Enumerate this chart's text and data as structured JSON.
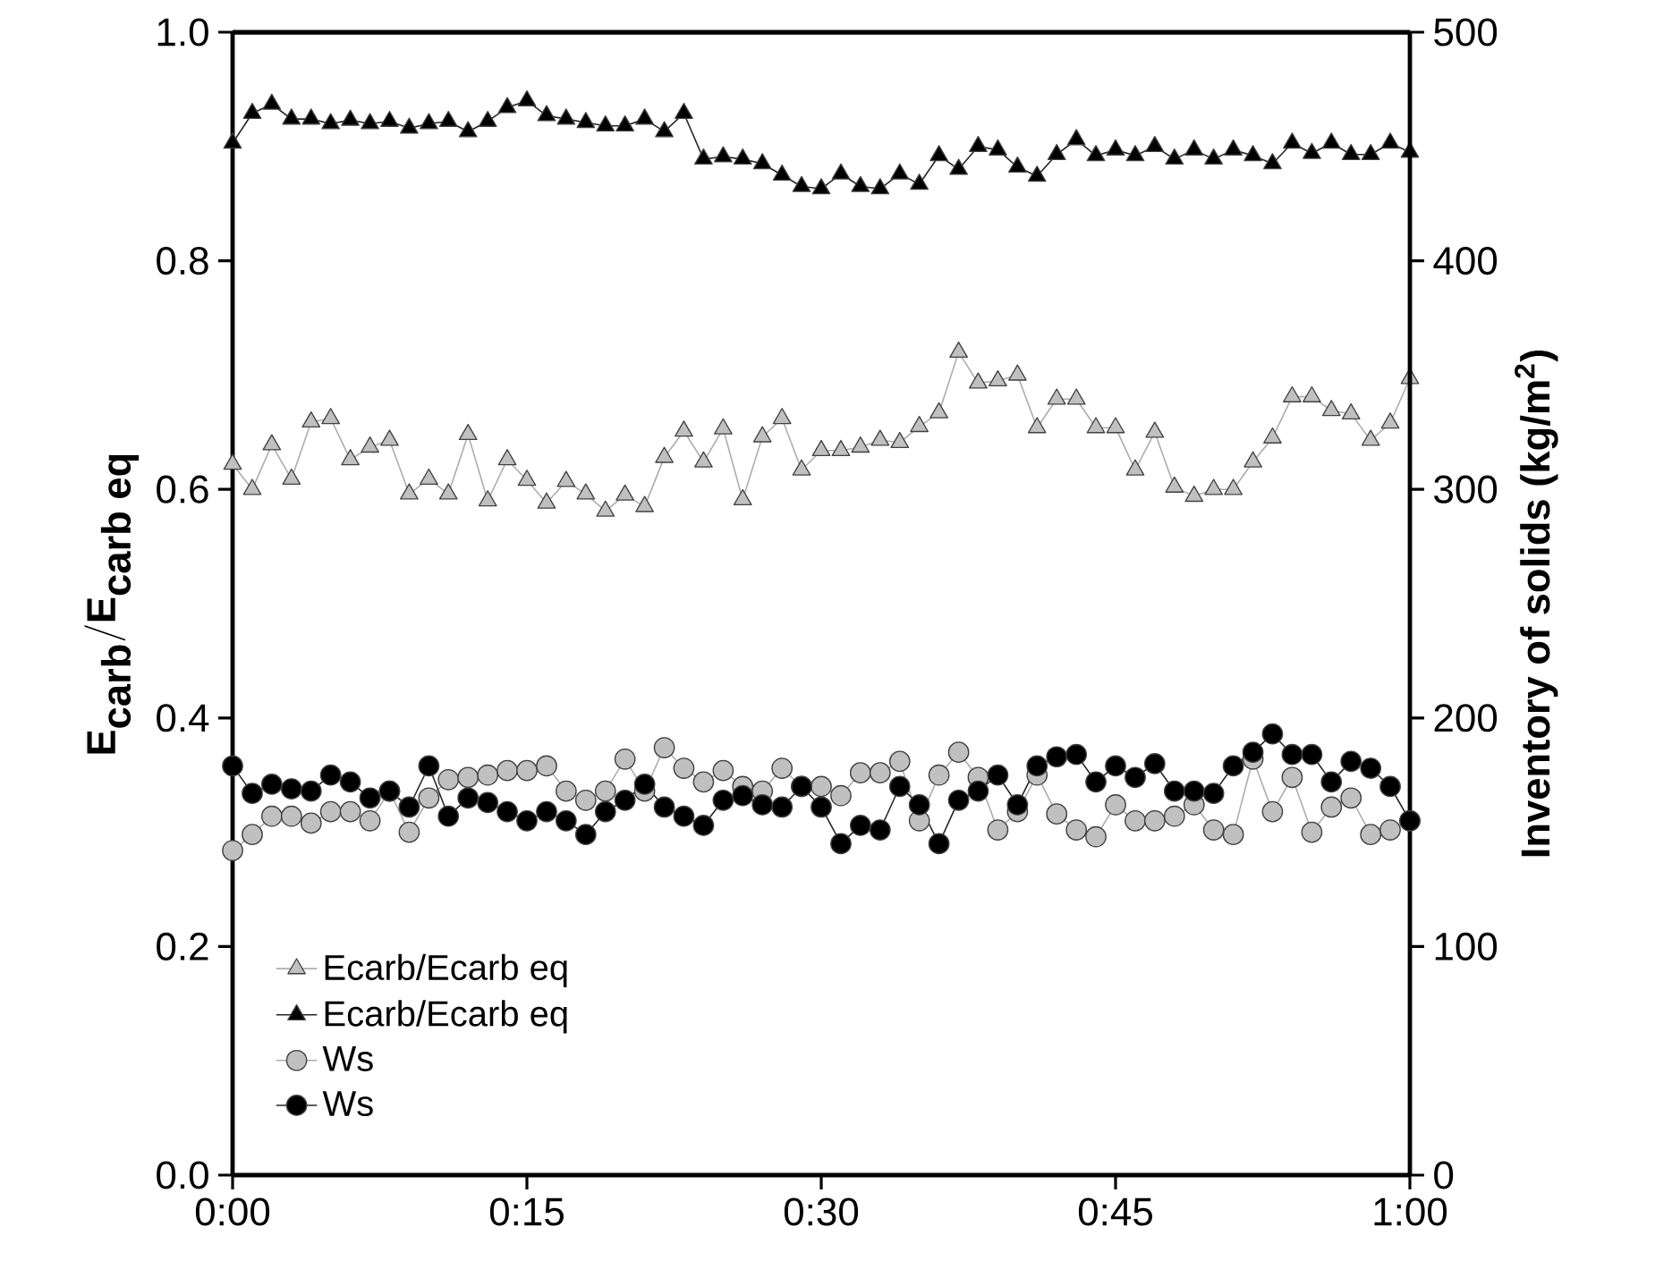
{
  "chart_data": {
    "type": "line",
    "ylabel": "\\textbf{E}_{\\textbf{carb}}/\\textbf{E}_{\\textbf{carb eq}}",
    "y2label": "**Inventory of solids (kg/m$^{2}$)**",
    "x": [
      0,
      0.0167,
      0.0333,
      0.05,
      0.0667,
      0.0833,
      0.1,
      0.1167,
      0.1333,
      0.15,
      0.1667,
      0.1833,
      0.2,
      0.2167,
      0.2333,
      0.25,
      0.2667,
      0.2833,
      0.3,
      0.3167,
      0.3333,
      0.35,
      0.3667,
      0.3833,
      0.4,
      0.4167,
      0.4333,
      0.45,
      0.4667,
      0.4833,
      0.5,
      0.5167,
      0.5333,
      0.55,
      0.5667,
      0.5833,
      0.6,
      0.6167,
      0.6333,
      0.65,
      0.6667,
      0.6833,
      0.7,
      0.7167,
      0.7333,
      0.75,
      0.7667,
      0.7833,
      0.8,
      0.8167,
      0.8333,
      0.85,
      0.8667,
      0.8833,
      0.9,
      0.9167,
      0.9333,
      0.95,
      0.9667,
      0.9833,
      1
    ],
    "xlim": [
      0,
      1
    ],
    "xticks": [
      {
        "value": 0,
        "label": "0:00"
      },
      {
        "value": 0.25,
        "label": "0:15"
      },
      {
        "value": 0.5,
        "label": "0:30"
      },
      {
        "value": 0.75,
        "label": "0:45"
      },
      {
        "value": 1,
        "label": "1:00"
      }
    ],
    "ylim": [
      0,
      1
    ],
    "yticks": [
      {
        "value": 0,
        "label": "0.0"
      },
      0.2,
      0.4,
      0.6,
      0.8,
      {
        "value": 1,
        "label": "1.0"
      }
    ],
    "y2lim": [
      0,
      500
    ],
    "y2ticks": [
      0,
      100,
      200,
      300,
      400,
      500
    ],
    "legend": "bottom left",
    "series": [
      {
        "name": "Ecarb/Ecarb eq",
        "color": "#c0c0c0",
        "marker": "triangle",
        "values": [
          0.622,
          0.6,
          0.639,
          0.609,
          0.659,
          0.662,
          0.626,
          0.637,
          0.643,
          0.596,
          0.609,
          0.596,
          0.648,
          0.59,
          0.626,
          0.608,
          0.588,
          0.607,
          0.596,
          0.581,
          0.595,
          0.585,
          0.628,
          0.651,
          0.624,
          0.653,
          0.591,
          0.646,
          0.662,
          0.617,
          0.634,
          0.634,
          0.637,
          0.643,
          0.641,
          0.655,
          0.667,
          0.72,
          0.693,
          0.695,
          0.7,
          0.654,
          0.679,
          0.679,
          0.654,
          0.654,
          0.617,
          0.65,
          0.602,
          0.594,
          0.6,
          0.6,
          0.624,
          0.645,
          0.681,
          0.681,
          0.669,
          0.666,
          0.643,
          0.658,
          0.697
        ]
      },
      {
        "name": "Ecarb/Ecarb eq",
        "color": "#000000",
        "marker": "triangle",
        "values": [
          0.903,
          0.929,
          0.937,
          0.924,
          0.924,
          0.92,
          0.923,
          0.92,
          0.922,
          0.916,
          0.92,
          0.922,
          0.913,
          0.922,
          0.934,
          0.94,
          0.927,
          0.924,
          0.921,
          0.918,
          0.918,
          0.924,
          0.913,
          0.929,
          0.889,
          0.891,
          0.889,
          0.885,
          0.875,
          0.865,
          0.863,
          0.876,
          0.865,
          0.863,
          0.876,
          0.867,
          0.892,
          0.88,
          0.9,
          0.897,
          0.882,
          0.874,
          0.893,
          0.906,
          0.892,
          0.897,
          0.892,
          0.9,
          0.889,
          0.897,
          0.889,
          0.897,
          0.892,
          0.885,
          0.903,
          0.894,
          0.903,
          0.893,
          0.893,
          0.903,
          0.895
        ]
      },
      {
        "name": "Ws",
        "color": "#c0c0c0",
        "marker": "circle",
        "axis": "y2",
        "values": [
          142,
          149,
          157,
          157,
          154,
          159,
          159,
          155,
          168,
          150,
          165,
          173,
          174,
          175,
          177,
          177,
          179,
          168,
          164,
          168,
          182,
          168,
          187,
          178,
          172,
          177,
          170,
          168,
          178,
          170,
          170,
          166,
          176,
          176,
          181,
          155,
          175,
          185,
          174,
          151,
          159,
          175,
          158,
          151,
          148,
          162,
          155,
          155,
          157,
          162,
          151,
          149,
          182,
          159,
          174,
          150,
          161,
          165,
          149,
          151,
          155
        ]
      },
      {
        "name": "Ws",
        "color": "#000000",
        "marker": "circle",
        "axis": "y2",
        "values": [
          179,
          167,
          171,
          169,
          168,
          175,
          172,
          165,
          168,
          161,
          179,
          157,
          165,
          163,
          159,
          155,
          159,
          155,
          149,
          159,
          164,
          171,
          161,
          157,
          153,
          164,
          166,
          162,
          161,
          170,
          161,
          145,
          153,
          151,
          170,
          162,
          145,
          164,
          168,
          175,
          162,
          179,
          183,
          184,
          172,
          179,
          174,
          180,
          168,
          168,
          167,
          179,
          185,
          193,
          184,
          184,
          172,
          181,
          178,
          170,
          155
        ]
      }
    ]
  }
}
